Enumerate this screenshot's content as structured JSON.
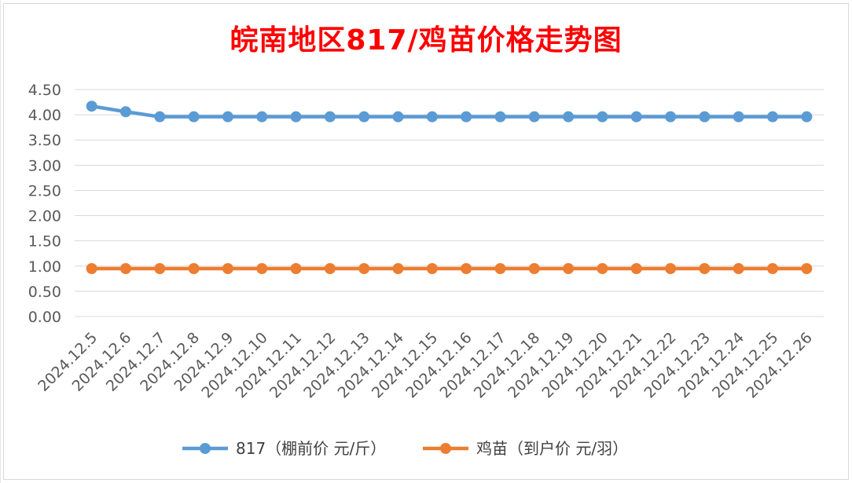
{
  "chart_data": {
    "type": "line",
    "title": "皖南地区817/鸡苗价格走势图",
    "categories": [
      "2024.12.5",
      "2024.12.6",
      "2024.12.7",
      "2024.12.8",
      "2024.12.9",
      "2024.12.10",
      "2024.12.11",
      "2024.12.12",
      "2024.12.13",
      "2024.12.14",
      "2024.12.15",
      "2024.12.16",
      "2024.12.17",
      "2024.12.18",
      "2024.12.19",
      "2024.12.20",
      "2024.12.21",
      "2024.12.22",
      "2024.12.23",
      "2024.12.24",
      "2024.12.25",
      "2024.12.26"
    ],
    "ylim": [
      0,
      4.5
    ],
    "yticks": [
      "0.00",
      "0.50",
      "1.00",
      "1.50",
      "2.00",
      "2.50",
      "3.00",
      "3.50",
      "4.00",
      "4.50"
    ],
    "grid": true,
    "legend_position": "bottom",
    "series": [
      {
        "name": "817（棚前价 元/斤）",
        "color": "#5b9bd5",
        "values": [
          4.17,
          4.06,
          3.96,
          3.96,
          3.96,
          3.96,
          3.96,
          3.96,
          3.96,
          3.96,
          3.96,
          3.96,
          3.96,
          3.96,
          3.96,
          3.96,
          3.96,
          3.96,
          3.96,
          3.96,
          3.96,
          3.96
        ]
      },
      {
        "name": "鸡苗（到户价 元/羽）",
        "color": "#ed7d31",
        "values": [
          0.95,
          0.95,
          0.95,
          0.95,
          0.95,
          0.95,
          0.95,
          0.95,
          0.95,
          0.95,
          0.95,
          0.95,
          0.95,
          0.95,
          0.95,
          0.95,
          0.95,
          0.95,
          0.95,
          0.95,
          0.95,
          0.95
        ]
      }
    ]
  }
}
